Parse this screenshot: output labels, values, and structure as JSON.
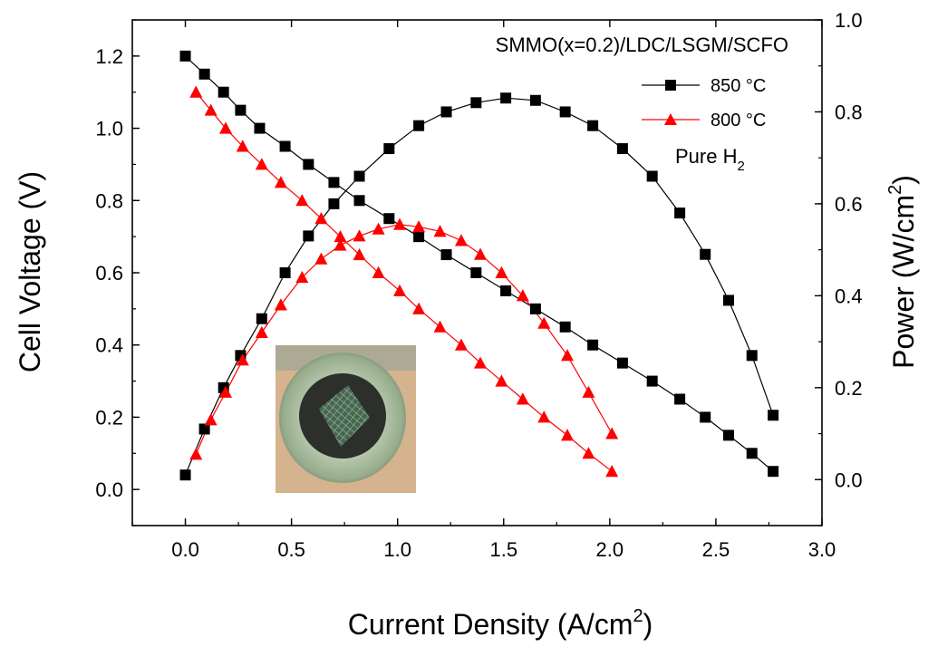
{
  "chart_data": {
    "type": "line",
    "title": "SMMO(x=0.2)/LDC/LSGM/SCFO",
    "annotation": {
      "text": "Pure H",
      "subscript": "2"
    },
    "xlabel": {
      "text": "Current Density (A/cm",
      "superscript": "2",
      "suffix": ")"
    },
    "ylabel_left": "Cell Voltage (V)",
    "ylabel_right": {
      "text": "Power (W/cm",
      "superscript": "2",
      "suffix": ")"
    },
    "xlim": [
      -0.25,
      3.0
    ],
    "ylim_left": [
      -0.1,
      1.3
    ],
    "ylim_right": [
      -0.1,
      1.0
    ],
    "x_ticks": [
      {
        "value": 0.0,
        "label": "0.0"
      },
      {
        "value": 0.5,
        "label": "0.5"
      },
      {
        "value": 1.0,
        "label": "1.0"
      },
      {
        "value": 1.5,
        "label": "1.5"
      },
      {
        "value": 2.0,
        "label": "2.0"
      },
      {
        "value": 2.5,
        "label": "2.5"
      },
      {
        "value": 3.0,
        "label": "3.0"
      }
    ],
    "y_left_ticks": [
      {
        "value": 0.0,
        "label": "0.0"
      },
      {
        "value": 0.2,
        "label": "0.2"
      },
      {
        "value": 0.4,
        "label": "0.4"
      },
      {
        "value": 0.6,
        "label": "0.6"
      },
      {
        "value": 0.8,
        "label": "0.8"
      },
      {
        "value": 1.0,
        "label": "1.0"
      },
      {
        "value": 1.2,
        "label": "1.2"
      }
    ],
    "y_right_ticks": [
      {
        "value": 0.0,
        "label": "0.0"
      },
      {
        "value": 0.2,
        "label": "0.2"
      },
      {
        "value": 0.4,
        "label": "0.4"
      },
      {
        "value": 0.6,
        "label": "0.6"
      },
      {
        "value": 0.8,
        "label": "0.8"
      },
      {
        "value": 1.0,
        "label": "1.0"
      }
    ],
    "legend": [
      {
        "label": "850 °C",
        "color": "#000000",
        "marker": "square"
      },
      {
        "label": "800 °C",
        "color": "#ff0000",
        "marker": "triangle"
      }
    ],
    "series": [
      {
        "name": "850 °C voltage",
        "axis": "left",
        "color": "#000000",
        "marker": "square",
        "x": [
          0.0,
          0.09,
          0.18,
          0.26,
          0.35,
          0.47,
          0.58,
          0.7,
          0.82,
          0.96,
          1.1,
          1.23,
          1.37,
          1.51,
          1.65,
          1.79,
          1.92,
          2.06,
          2.2,
          2.33,
          2.45,
          2.56,
          2.67,
          2.77
        ],
        "y": [
          1.2,
          1.15,
          1.1,
          1.05,
          1.0,
          0.95,
          0.9,
          0.85,
          0.8,
          0.75,
          0.7,
          0.65,
          0.6,
          0.55,
          0.5,
          0.45,
          0.4,
          0.35,
          0.3,
          0.25,
          0.2,
          0.15,
          0.1,
          0.05
        ]
      },
      {
        "name": "850 °C power",
        "axis": "right",
        "color": "#000000",
        "marker": "square",
        "x": [
          0.0,
          0.09,
          0.18,
          0.26,
          0.36,
          0.47,
          0.58,
          0.7,
          0.82,
          0.96,
          1.1,
          1.23,
          1.37,
          1.51,
          1.65,
          1.79,
          1.92,
          2.06,
          2.2,
          2.33,
          2.45,
          2.56,
          2.67,
          2.77
        ],
        "y": [
          0.01,
          0.11,
          0.2,
          0.27,
          0.35,
          0.45,
          0.53,
          0.6,
          0.66,
          0.72,
          0.77,
          0.8,
          0.82,
          0.83,
          0.825,
          0.8,
          0.77,
          0.72,
          0.66,
          0.58,
          0.49,
          0.39,
          0.27,
          0.14
        ]
      },
      {
        "name": "800 °C voltage",
        "axis": "left",
        "color": "#ff0000",
        "marker": "triangle",
        "x": [
          0.05,
          0.12,
          0.19,
          0.27,
          0.36,
          0.45,
          0.55,
          0.64,
          0.73,
          0.82,
          0.91,
          1.01,
          1.1,
          1.2,
          1.3,
          1.39,
          1.49,
          1.59,
          1.69,
          1.8,
          1.9,
          2.01
        ],
        "y": [
          1.1,
          1.05,
          1.0,
          0.95,
          0.9,
          0.85,
          0.8,
          0.75,
          0.7,
          0.65,
          0.6,
          0.55,
          0.5,
          0.45,
          0.4,
          0.35,
          0.3,
          0.25,
          0.2,
          0.15,
          0.1,
          0.05
        ]
      },
      {
        "name": "800 °C power",
        "axis": "right",
        "color": "#ff0000",
        "marker": "triangle",
        "x": [
          0.05,
          0.12,
          0.19,
          0.27,
          0.36,
          0.45,
          0.55,
          0.64,
          0.73,
          0.82,
          0.91,
          1.01,
          1.1,
          1.2,
          1.3,
          1.39,
          1.49,
          1.59,
          1.69,
          1.8,
          1.9,
          2.01
        ],
        "y": [
          0.055,
          0.13,
          0.19,
          0.26,
          0.32,
          0.38,
          0.44,
          0.48,
          0.51,
          0.53,
          0.545,
          0.555,
          0.55,
          0.54,
          0.52,
          0.49,
          0.45,
          0.4,
          0.34,
          0.27,
          0.19,
          0.1
        ]
      }
    ],
    "inset_photo": {
      "description_visible": false
    }
  }
}
